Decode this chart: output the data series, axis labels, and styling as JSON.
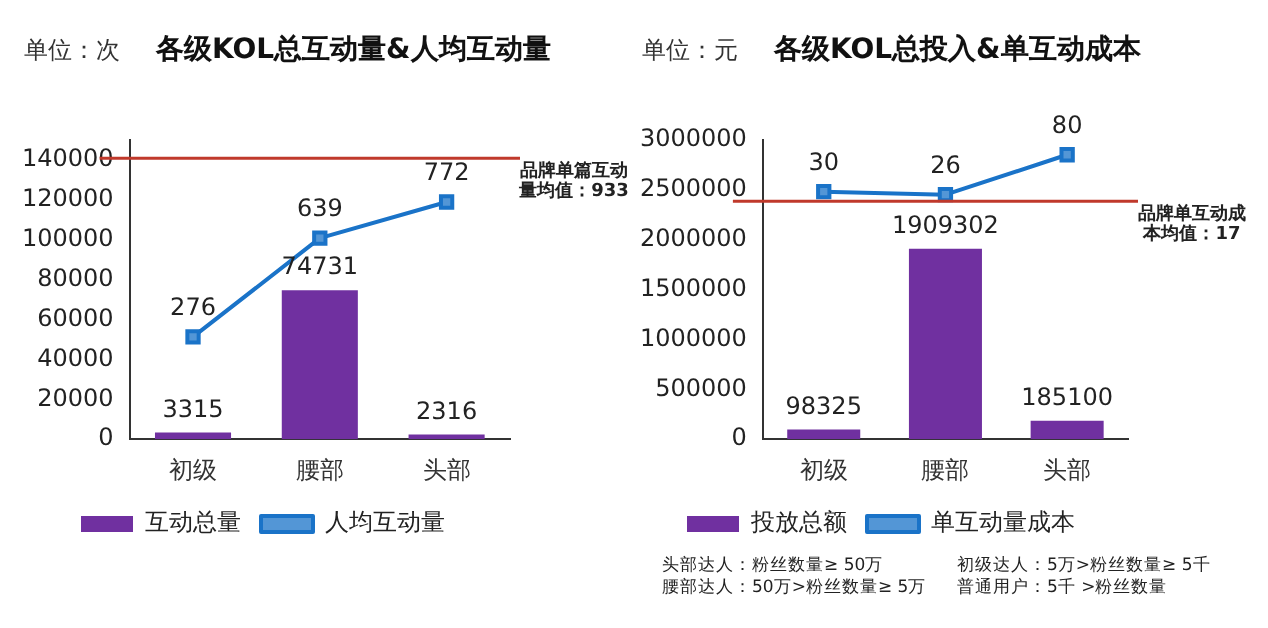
{
  "chart_data": [
    {
      "type": "bar",
      "title": "各级KOL总互动量&人均互动量",
      "annotations": [
        "单位：次"
      ],
      "categories": [
        "初级",
        "腰部",
        "头部"
      ],
      "series": [
        {
          "name": "互动总量",
          "color": "#7030a0",
          "values": [
            3315,
            74731,
            2316
          ]
        },
        {
          "name": "人均互动量",
          "type": "line",
          "axis": "y2",
          "color": "#1a73c8",
          "values": [
            276,
            639,
            772
          ]
        }
      ],
      "ylim": [
        0,
        150000
      ],
      "yticks": [
        0,
        20000,
        40000,
        60000,
        80000,
        100000,
        120000,
        140000
      ],
      "y2lim": [
        -100,
        1000
      ],
      "tick_labels": "xy",
      "ref_lines": [
        {
          "axis": "y2",
          "value": 933,
          "label": "品牌单篇互动量均值：933",
          "color": "#c0392b"
        }
      ],
      "data_labels": true,
      "marker": "square",
      "legend": "bottom"
    },
    {
      "type": "bar",
      "title": "各级KOL总投入&单互动成本",
      "annotations": [
        "单位：元",
        "头部达人：粉丝数量≥ 50万",
        "初级达人：5万>粉丝数量≥ 5千",
        "腰部达人：50万>粉丝数量≥ 5万",
        "普通用户：5千 >粉丝数量"
      ],
      "categories": [
        "初级",
        "腰部",
        "头部"
      ],
      "series": [
        {
          "name": "投放总额",
          "color": "#7030a0",
          "values": [
            98325,
            1909302,
            185100
          ]
        },
        {
          "name": "单互动量成本",
          "type": "line",
          "axis": "y2",
          "color": "#1a73c8",
          "values": [
            30,
            26,
            80
          ]
        }
      ],
      "ylim": [
        0,
        3000000
      ],
      "yticks": [
        0,
        500000,
        1000000,
        1500000,
        2000000,
        2500000,
        3000000
      ],
      "y2lim": [
        -305,
        100
      ],
      "tick_labels": "xy",
      "ref_lines": [
        {
          "axis": "y2",
          "value": 17,
          "label": "品牌单互动成本均值：17",
          "color": "#c0392b"
        }
      ],
      "data_labels": true,
      "marker": "square",
      "legend": "bottom"
    }
  ]
}
